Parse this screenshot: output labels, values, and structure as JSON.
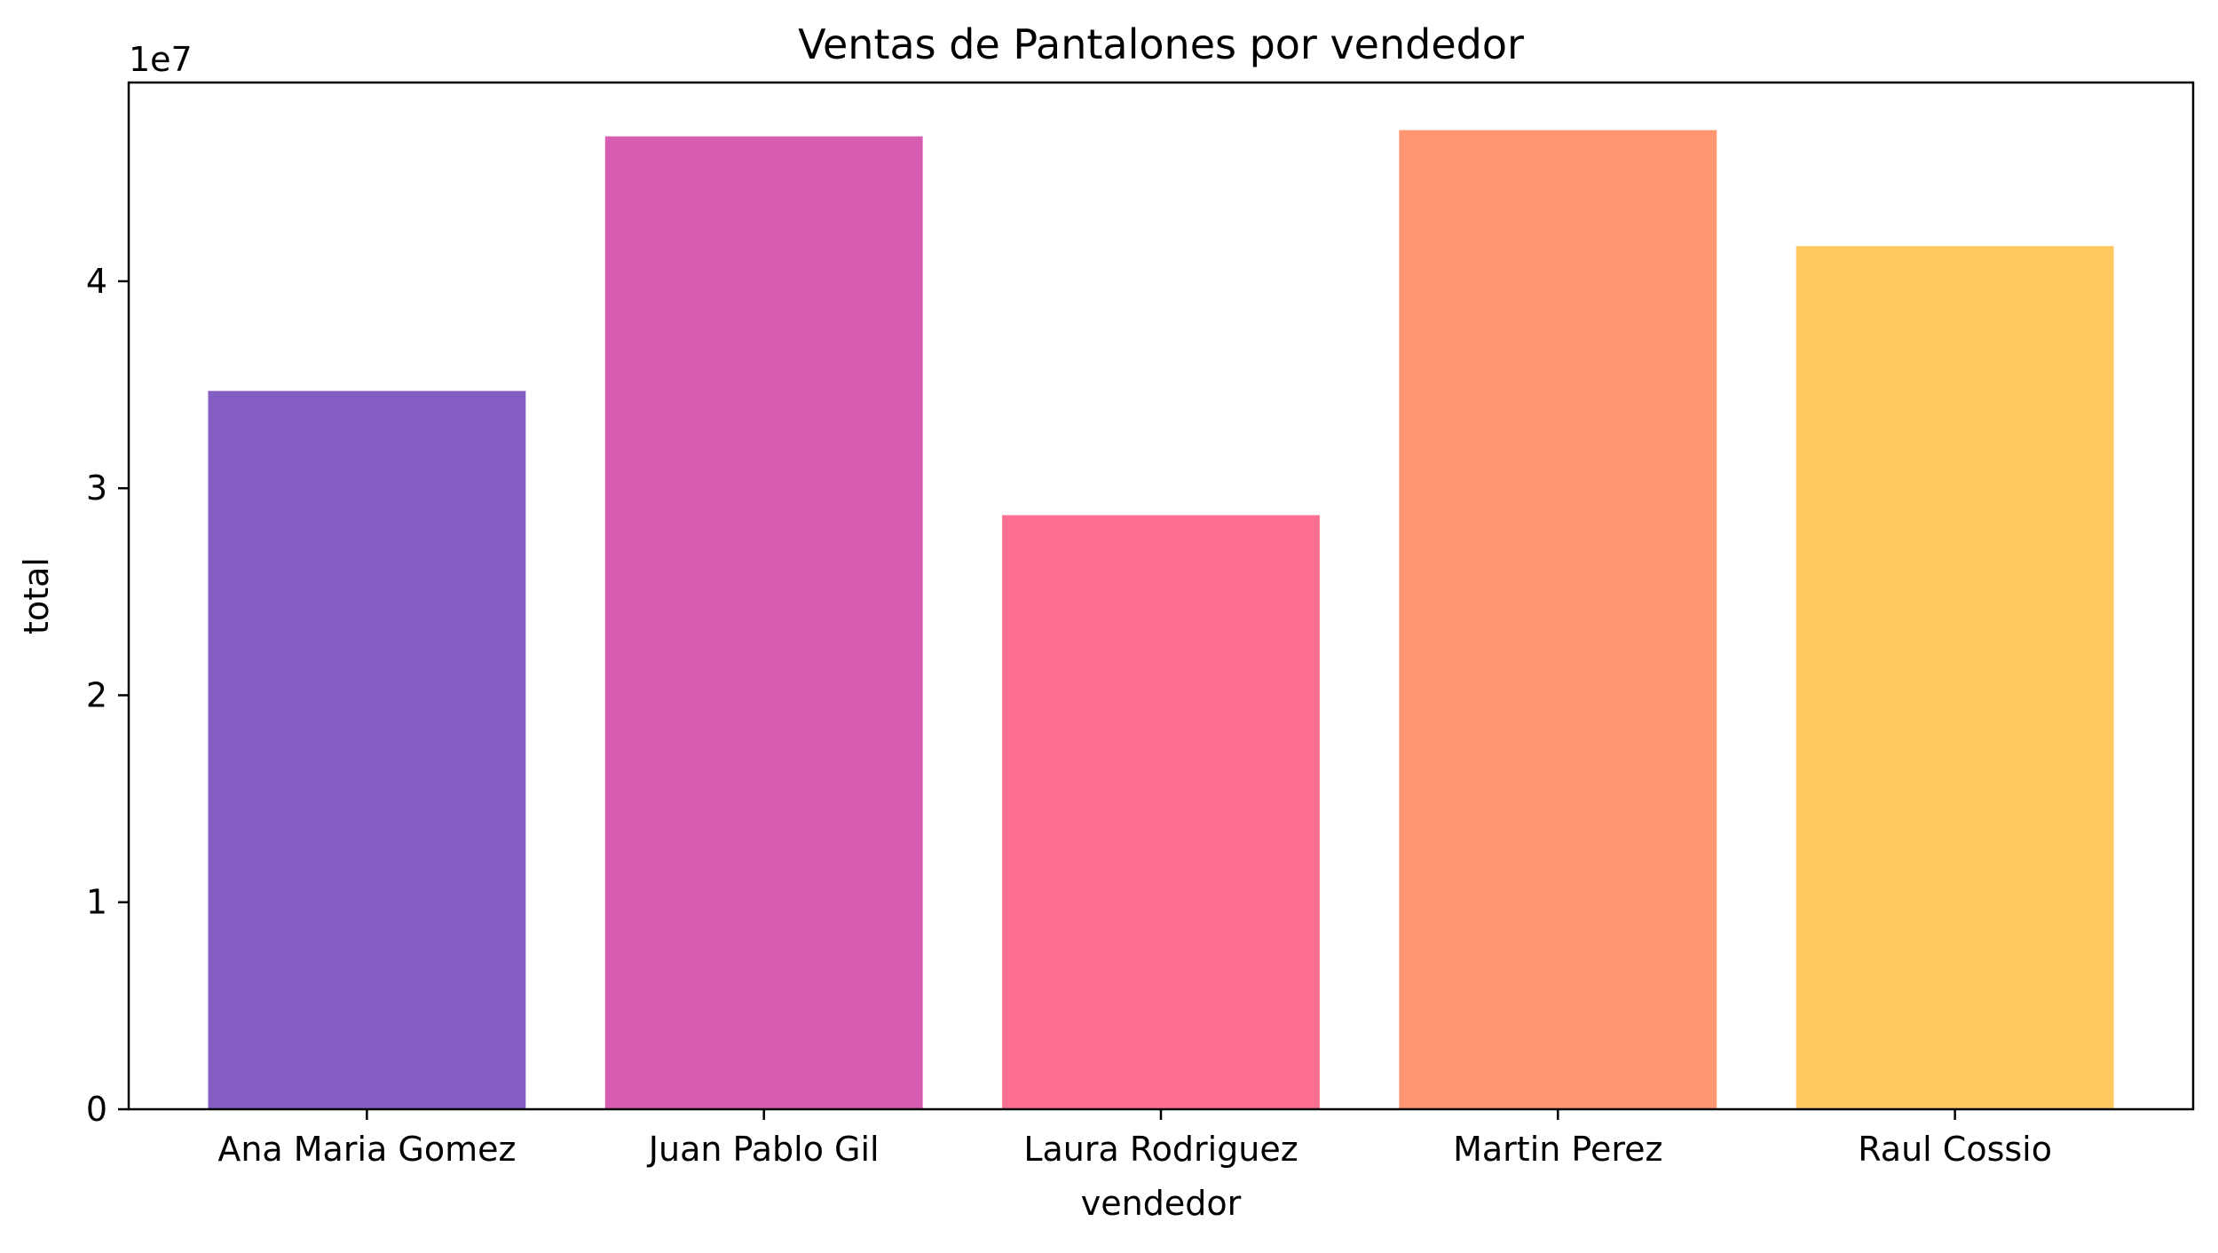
{
  "chart_data": {
    "type": "bar",
    "title": "Ventas de Pantalones por vendedor",
    "xlabel": "vendedor",
    "ylabel": "total",
    "offset_label": "1e7",
    "categories": [
      "Ana Maria Gomez",
      "Juan Pablo Gil",
      "Laura Rodriguez",
      "Martin Perez",
      "Raul Cossio"
    ],
    "values": [
      34700000,
      47000000,
      28700000,
      47300000,
      41700000
    ],
    "colors": [
      "#845EC2",
      "#D65DB1",
      "#FF6F91",
      "#FF9671",
      "#FFC75F"
    ],
    "ylim": [
      0,
      49600000
    ],
    "yticks": [
      0,
      10000000,
      20000000,
      30000000,
      40000000
    ],
    "ytick_labels": [
      "0",
      "1",
      "2",
      "3",
      "4"
    ],
    "grid": false,
    "legend": "none"
  }
}
